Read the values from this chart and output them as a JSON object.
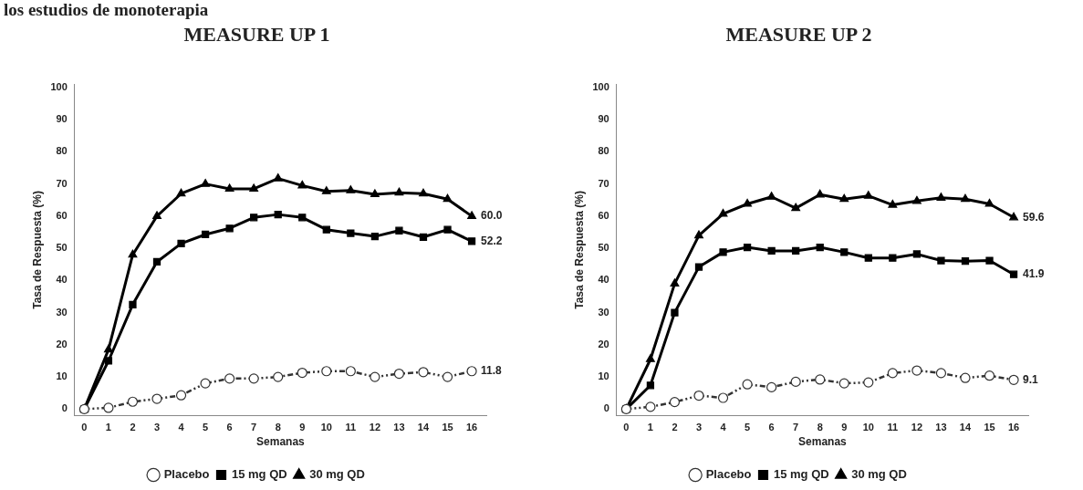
{
  "chart_data": [
    {
      "type": "line",
      "title": "MEASURE UP 1",
      "xlabel": "Semanas",
      "ylabel": "Tasa de Respuesta (%)",
      "annotations": [
        "los estudios de monoterapia"
      ],
      "x": [
        0,
        1,
        2,
        3,
        4,
        5,
        6,
        7,
        8,
        9,
        10,
        11,
        12,
        13,
        14,
        15,
        16
      ],
      "series": [
        {
          "name": "Placebo",
          "color": "#333333",
          "marker": "circle",
          "line_style": "dotted",
          "values": [
            0,
            0.4,
            2.3,
            3.2,
            4.3,
            8,
            9.5,
            9.5,
            10,
            11.3,
            11.8,
            11.8,
            10,
            11,
            11.5,
            10,
            11.8
          ],
          "value_labels": [
            null,
            null,
            null,
            null,
            null,
            null,
            null,
            null,
            null,
            null,
            null,
            null,
            null,
            null,
            null,
            null,
            "11.8"
          ]
        },
        {
          "name": "15 mg QD",
          "color": "#000000",
          "marker": "square",
          "line_style": "solid",
          "values": [
            0,
            15,
            32.5,
            45.8,
            51.5,
            54.3,
            56.2,
            59.6,
            60.5,
            59.6,
            55.8,
            54.7,
            53.7,
            55.5,
            53.5,
            55.8,
            52.2
          ],
          "value_labels": [
            null,
            null,
            null,
            null,
            null,
            null,
            null,
            null,
            null,
            null,
            null,
            null,
            null,
            null,
            null,
            null,
            "52.2"
          ]
        },
        {
          "name": "30 mg QD",
          "color": "#000000",
          "marker": "triangle",
          "line_style": "solid",
          "values": [
            0,
            18.5,
            48,
            60,
            67,
            70,
            68.5,
            68.5,
            71.7,
            69.5,
            67.7,
            68,
            66.8,
            67.3,
            67,
            65.3,
            60.0
          ],
          "value_labels": [
            null,
            null,
            null,
            null,
            null,
            null,
            null,
            null,
            null,
            null,
            null,
            null,
            null,
            null,
            null,
            null,
            "60.0"
          ]
        }
      ],
      "xlim": [
        -0.4,
        16.6
      ],
      "xticks": [
        0,
        1,
        2,
        3,
        4,
        5,
        6,
        7,
        8,
        9,
        10,
        11,
        12,
        13,
        14,
        15,
        16
      ],
      "ylim": [
        -2,
        101
      ],
      "yticks": [
        0,
        10,
        20,
        30,
        40,
        50,
        60,
        70,
        80,
        90,
        100
      ],
      "grid": false,
      "legend": "bottom"
    },
    {
      "type": "line",
      "title": "MEASURE UP 2",
      "xlabel": "Semanas",
      "ylabel": "Tasa de Respuesta (%)",
      "x": [
        0,
        1,
        2,
        3,
        4,
        5,
        6,
        7,
        8,
        9,
        10,
        11,
        12,
        13,
        14,
        15,
        16
      ],
      "series": [
        {
          "name": "Placebo",
          "color": "#333333",
          "marker": "circle",
          "line_style": "dotted",
          "values": [
            0,
            0.7,
            2.2,
            4.2,
            3.5,
            7.7,
            6.8,
            8.5,
            9.2,
            8,
            8.3,
            11.2,
            12,
            11.2,
            9.7,
            10.4,
            9.1
          ],
          "value_labels": [
            null,
            null,
            null,
            null,
            null,
            null,
            null,
            null,
            null,
            null,
            null,
            null,
            null,
            null,
            null,
            null,
            "9.1"
          ]
        },
        {
          "name": "15 mg QD",
          "color": "#000000",
          "marker": "square",
          "line_style": "solid",
          "values": [
            0,
            7.4,
            30,
            44.2,
            48.8,
            50.3,
            49.2,
            49.2,
            50.3,
            48.8,
            47,
            47,
            48.2,
            46.2,
            46,
            46.2,
            41.9
          ],
          "value_labels": [
            null,
            null,
            null,
            null,
            null,
            null,
            null,
            null,
            null,
            null,
            null,
            null,
            null,
            null,
            null,
            null,
            "41.9"
          ]
        },
        {
          "name": "30 mg QD",
          "color": "#000000",
          "marker": "triangle",
          "line_style": "solid",
          "values": [
            0,
            15.5,
            39,
            54,
            60.7,
            63.8,
            66,
            62.5,
            66.7,
            65.3,
            66.3,
            63.5,
            64.7,
            65.7,
            65.3,
            63.8,
            59.6
          ],
          "value_labels": [
            null,
            null,
            null,
            null,
            null,
            null,
            null,
            null,
            null,
            null,
            null,
            null,
            null,
            null,
            null,
            null,
            "59.6"
          ]
        }
      ],
      "xlim": [
        -0.4,
        16.6
      ],
      "xticks": [
        0,
        1,
        2,
        3,
        4,
        5,
        6,
        7,
        8,
        9,
        10,
        11,
        12,
        13,
        14,
        15,
        16
      ],
      "ylim": [
        -2,
        101
      ],
      "yticks": [
        0,
        10,
        20,
        30,
        40,
        50,
        60,
        70,
        80,
        90,
        100
      ],
      "grid": false,
      "legend": "bottom"
    }
  ]
}
